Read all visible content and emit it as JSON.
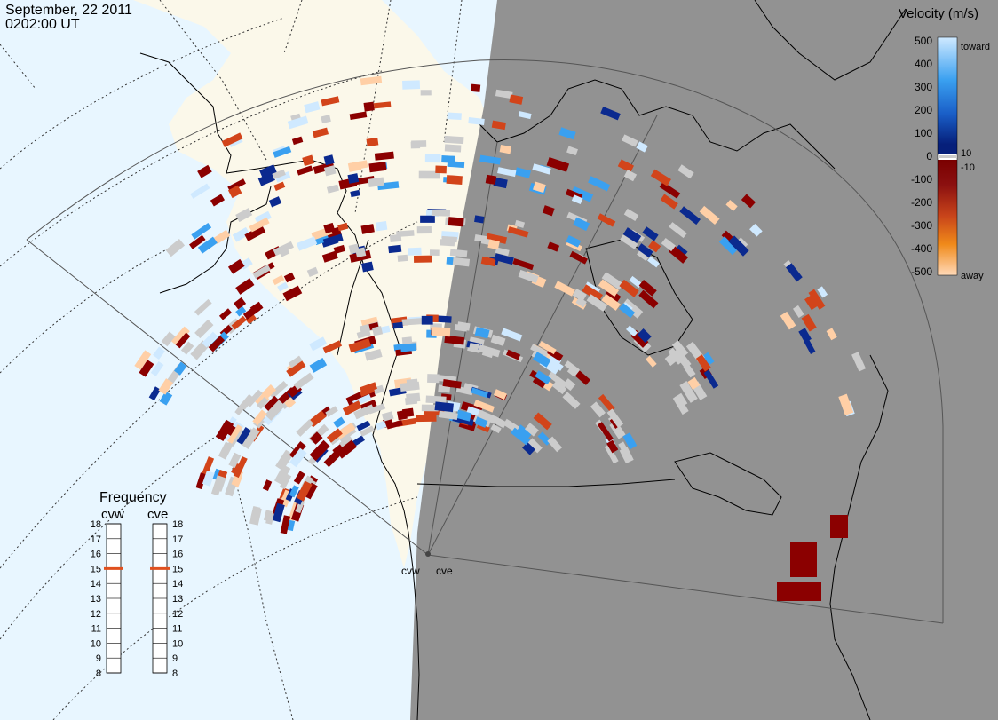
{
  "header": {
    "date": "September, 22 2011",
    "time": "0202:00 UT"
  },
  "velocity_scale": {
    "title": "Velocity (m/s)",
    "labels": [
      "500",
      "400",
      "300",
      "200",
      "100",
      "0",
      "-100",
      "-200",
      "-300",
      "-400",
      "-500"
    ],
    "toward_label": "toward",
    "away_label": "away",
    "pos_threshold_label": "10",
    "neg_threshold_label": "-10",
    "colors": {
      "toward_far": "#cfe9ff",
      "toward_mid": "#3aa0f0",
      "toward_near": "#0b2a8f",
      "zero": "#ffffff",
      "away_near": "#8b0000",
      "away_mid": "#d2441a",
      "away_far": "#ffcfa6",
      "ground_scatter": "#cccccc"
    }
  },
  "frequency_panel": {
    "title": "Frequency",
    "radars": [
      {
        "name": "cvw",
        "frequency_mhz": 15
      },
      {
        "name": "cve",
        "frequency_mhz": 15
      }
    ],
    "ticks": [
      "18",
      "17",
      "16",
      "15",
      "14",
      "13",
      "12",
      "11",
      "10",
      "9",
      "8"
    ],
    "indicator_color": "#e0501e"
  },
  "map": {
    "ocean_color": "#e8f6ff",
    "land_color": "#fbf8ea",
    "night_color": "#929292",
    "coast_color": "#000000",
    "fov_color": "#555555",
    "stations": [
      {
        "label": "cvw"
      },
      {
        "label": "cve"
      }
    ]
  }
}
